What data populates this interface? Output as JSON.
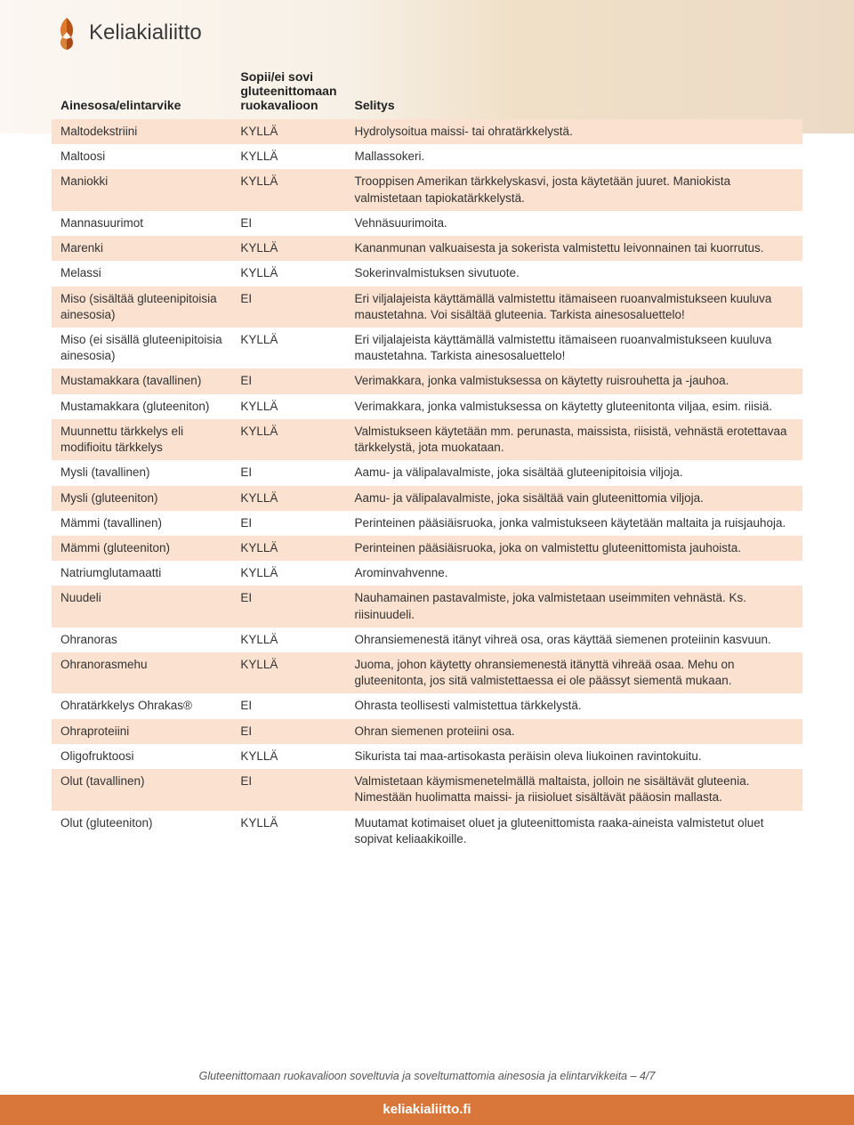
{
  "logo": {
    "text": "Keliakialiitto",
    "leaf_color_1": "#e07b2e",
    "leaf_color_2": "#b85318"
  },
  "header_bg_gradient": [
    "#f5e8d8",
    "#e8d5b8",
    "#d4a862",
    "#c8955a"
  ],
  "colors": {
    "shaded_row": "#fbe1cf",
    "plain_row": "#ffffff",
    "footer_bar": "#d9763a",
    "footer_text": "#ffffff",
    "body_text": "#333333",
    "caption_text": "#555555"
  },
  "table": {
    "columns": [
      {
        "label": "Ainesosa/elintarvike",
        "width_pct": 24
      },
      {
        "label": "Sopii/ei sovi gluteenittomaan ruokavalioon",
        "width_pct": 15
      },
      {
        "label": "Selitys",
        "width_pct": 61
      }
    ],
    "rows": [
      {
        "c1": "Maltodekstriini",
        "c2": "KYLLÄ",
        "c3": "Hydrolysoitua maissi- tai ohratärkkelystä.",
        "shaded": true
      },
      {
        "c1": "Maltoosi",
        "c2": "KYLLÄ",
        "c3": "Mallassokeri.",
        "shaded": false
      },
      {
        "c1": "Maniokki",
        "c2": "KYLLÄ",
        "c3": "Trooppisen Amerikan tärkkelyskasvi, josta käytetään juuret. Maniokista valmistetaan tapiokatärkkelystä.",
        "shaded": true
      },
      {
        "c1": "Mannasuurimot",
        "c2": "EI",
        "c3": "Vehnäsuurimoita.",
        "shaded": false
      },
      {
        "c1": "Marenki",
        "c2": "KYLLÄ",
        "c3": "Kananmunan valkuaisesta ja sokerista valmistettu leivonnainen tai kuorrutus.",
        "shaded": true
      },
      {
        "c1": "Melassi",
        "c2": "KYLLÄ",
        "c3": "Sokerinvalmistuksen sivutuote.",
        "shaded": false
      },
      {
        "c1": "Miso (sisältää gluteenipitoisia ainesosia)",
        "c2": "EI",
        "c3": "Eri viljalajeista käyttämällä valmistettu itämaiseen ruoanvalmistukseen kuuluva maustetahna. Voi sisältää gluteenia. Tarkista ainesosaluettelo!",
        "shaded": true
      },
      {
        "c1": "Miso (ei sisällä gluteenipitoisia ainesosia)",
        "c2": "KYLLÄ",
        "c3": "Eri viljalajeista käyttämällä valmistettu itämaiseen ruoanvalmistukseen kuuluva maustetahna. Tarkista ainesosaluettelo!",
        "shaded": false
      },
      {
        "c1": "Mustamakkara (tavallinen)",
        "c2": "EI",
        "c3": "Verimakkara, jonka valmistuksessa on käytetty ruisrouhetta ja -jauhoa.",
        "shaded": true
      },
      {
        "c1": "Mustamakkara (gluteeniton)",
        "c2": "KYLLÄ",
        "c3": "Verimakkara, jonka valmistuksessa on käytetty gluteenitonta viljaa, esim. riisiä.",
        "shaded": false
      },
      {
        "c1": "Muunnettu tärkkelys eli modifioitu tärkkelys",
        "c2": "KYLLÄ",
        "c3": "Valmistukseen käytetään mm. perunasta, maissista, riisistä, vehnästä erotettavaa tärkkelystä, jota muokataan.",
        "shaded": true
      },
      {
        "c1": "Mysli (tavallinen)",
        "c2": "EI",
        "c3": "Aamu- ja välipalavalmiste, joka sisältää gluteenipitoisia viljoja.",
        "shaded": false
      },
      {
        "c1": "Mysli (gluteeniton)",
        "c2": "KYLLÄ",
        "c3": "Aamu- ja välipalavalmiste, joka sisältää vain gluteenittomia viljoja.",
        "shaded": true
      },
      {
        "c1": "Mämmi (tavallinen)",
        "c2": "EI",
        "c3": "Perinteinen pääsiäisruoka, jonka valmistukseen käytetään maltaita ja ruisjauhoja.",
        "shaded": false
      },
      {
        "c1": "Mämmi (gluteeniton)",
        "c2": "KYLLÄ",
        "c3": "Perinteinen pääsiäisruoka, joka on valmistettu gluteenittomista jauhoista.",
        "shaded": true
      },
      {
        "c1": "Natriumglutamaatti",
        "c2": "KYLLÄ",
        "c3": "Arominvahvenne.",
        "shaded": false
      },
      {
        "c1": "Nuudeli",
        "c2": "EI",
        "c3": "Nauhamainen pastavalmiste, joka valmistetaan useimmiten vehnästä. Ks. riisinuudeli.",
        "shaded": true
      },
      {
        "c1": "Ohranoras",
        "c2": "KYLLÄ",
        "c3": "Ohransiemenestä itänyt vihreä osa, oras käyttää siemenen proteiinin kasvuun.",
        "shaded": false
      },
      {
        "c1": "Ohranorasmehu",
        "c2": "KYLLÄ",
        "c3": "Juoma, johon käytetty ohransiemenestä itänyttä vihreää osaa. Mehu on gluteenitonta, jos sitä valmistettaessa ei ole päässyt siementä mukaan.",
        "shaded": true
      },
      {
        "c1": "Ohratärkkelys Ohrakas®",
        "c2": "EI",
        "c3": "Ohrasta teollisesti valmistettua tärkkelystä.",
        "shaded": false
      },
      {
        "c1": "Ohraproteiini",
        "c2": "EI",
        "c3": "Ohran siemenen proteiini osa.",
        "shaded": true
      },
      {
        "c1": "Oligofruktoosi",
        "c2": "KYLLÄ",
        "c3": "Sikurista tai maa-artisokasta peräisin oleva liukoinen ravintokuitu.",
        "shaded": false
      },
      {
        "c1": "Olut (tavallinen)",
        "c2": "EI",
        "c3": "Valmistetaan käymismenetelmällä maltaista, jolloin ne sisältävät gluteenia. Nimestään huolimatta maissi- ja riisioluet sisältävät pääosin mallasta.",
        "shaded": true
      },
      {
        "c1": "Olut (gluteeniton)",
        "c2": "KYLLÄ",
        "c3": "Muutamat kotimaiset oluet ja gluteenittomista raaka-aineista valmistetut oluet sopivat keliaakikoille.",
        "shaded": false
      }
    ]
  },
  "footer": {
    "caption": "Gluteenittomaan ruokavalioon soveltuvia ja soveltumattomia ainesosia ja elintarvikkeita – 4/7",
    "bar_text": "keliakialiitto.fi"
  }
}
